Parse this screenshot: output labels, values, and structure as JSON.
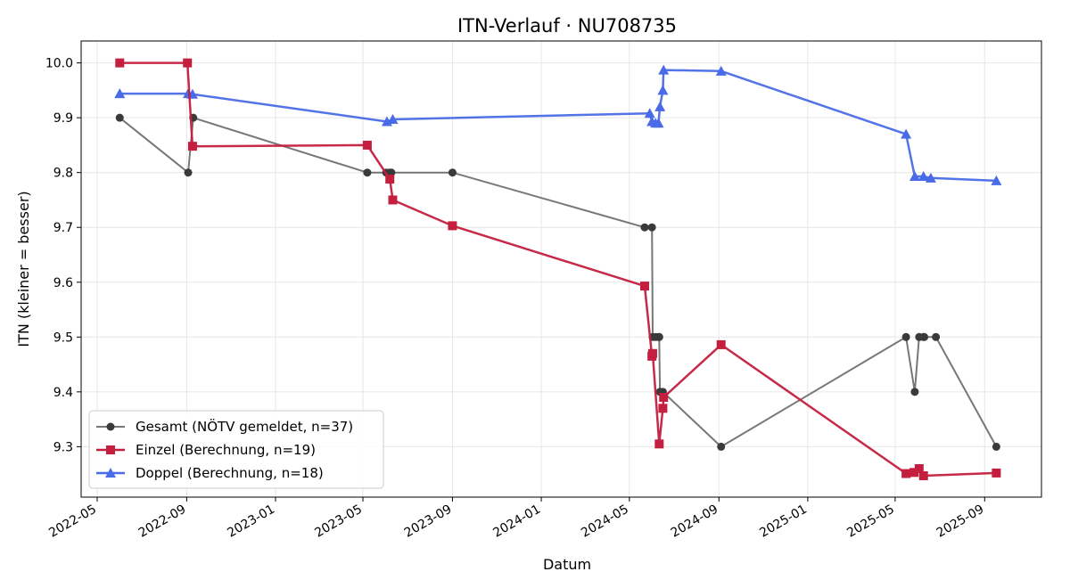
{
  "chart_data": {
    "type": "line",
    "title": "ITN-Verlauf · NU708735",
    "xlabel": "Datum",
    "ylabel": "ITN  (kleiner = besser)",
    "x_tick_labels": [
      "2022-05",
      "2022-09",
      "2023-01",
      "2023-05",
      "2023-09",
      "2024-01",
      "2024-05",
      "2024-09",
      "2025-01",
      "2025-05",
      "2025-09"
    ],
    "y_tick_labels": [
      "9.3",
      "9.4",
      "9.5",
      "9.6",
      "9.7",
      "9.8",
      "9.9",
      "10.0"
    ],
    "xlim": [
      "2022-04-09",
      "2025-11-18"
    ],
    "ylim": [
      9.208,
      10.04
    ],
    "grid": true,
    "legend_position": "bottom-left",
    "series": [
      {
        "name": "Gesamt (NÖTV gemeldet, n=37)",
        "color": "#555555",
        "marker": "circle",
        "points": [
          [
            "2022-06-01",
            9.9
          ],
          [
            "2022-09-03",
            9.8
          ],
          [
            "2022-09-10",
            9.9
          ],
          [
            "2023-05-07",
            9.8
          ],
          [
            "2023-06-02",
            9.8
          ],
          [
            "2023-06-07",
            9.8
          ],
          [
            "2023-06-09",
            9.8
          ],
          [
            "2023-09-01",
            9.8
          ],
          [
            "2024-05-22",
            9.7
          ],
          [
            "2024-06-01",
            9.7
          ],
          [
            "2024-06-02",
            9.5
          ],
          [
            "2024-06-06",
            9.5
          ],
          [
            "2024-06-10",
            9.5
          ],
          [
            "2024-06-11",
            9.5
          ],
          [
            "2024-06-12",
            9.4
          ],
          [
            "2024-06-16",
            9.4
          ],
          [
            "2024-09-04",
            9.3
          ],
          [
            "2025-05-16",
            9.5
          ],
          [
            "2025-05-28",
            9.4
          ],
          [
            "2025-06-03",
            9.5
          ],
          [
            "2025-06-09",
            9.5
          ],
          [
            "2025-06-10",
            9.5
          ],
          [
            "2025-06-26",
            9.5
          ],
          [
            "2025-09-17",
            9.3
          ]
        ]
      },
      {
        "name": "Einzel (Berechnung, n=19)",
        "color": "#c41f3e",
        "marker": "square",
        "points": [
          [
            "2022-06-01",
            10.0
          ],
          [
            "2022-09-02",
            10.0
          ],
          [
            "2022-09-09",
            9.848
          ],
          [
            "2023-05-07",
            9.85
          ],
          [
            "2023-06-07",
            9.788
          ],
          [
            "2023-06-11",
            9.75
          ],
          [
            "2023-09-01",
            9.703
          ],
          [
            "2024-05-22",
            9.593
          ],
          [
            "2024-06-01",
            9.465
          ],
          [
            "2024-06-02",
            9.47
          ],
          [
            "2024-06-11",
            9.305
          ],
          [
            "2024-06-16",
            9.37
          ],
          [
            "2024-06-17",
            9.39
          ],
          [
            "2024-09-04",
            9.486
          ],
          [
            "2025-05-16",
            9.251
          ],
          [
            "2025-05-27",
            9.253
          ],
          [
            "2025-06-03",
            9.26
          ],
          [
            "2025-06-09",
            9.247
          ],
          [
            "2025-09-17",
            9.252
          ]
        ]
      },
      {
        "name": "Doppel (Berechnung, n=18)",
        "color": "#4a6be8",
        "marker": "triangle",
        "points": [
          [
            "2022-06-01",
            9.944
          ],
          [
            "2022-09-03",
            9.944
          ],
          [
            "2022-09-09",
            9.943
          ],
          [
            "2023-06-03",
            9.893
          ],
          [
            "2023-06-11",
            9.897
          ],
          [
            "2024-05-29",
            9.908
          ],
          [
            "2024-06-01",
            9.893
          ],
          [
            "2024-06-06",
            9.89
          ],
          [
            "2024-06-10",
            9.89
          ],
          [
            "2024-06-12",
            9.92
          ],
          [
            "2024-06-16",
            9.95
          ],
          [
            "2024-06-17",
            9.987
          ],
          [
            "2024-09-04",
            9.985
          ],
          [
            "2025-05-16",
            9.87
          ],
          [
            "2025-05-28",
            9.793
          ],
          [
            "2025-06-09",
            9.793
          ],
          [
            "2025-06-19",
            9.79
          ],
          [
            "2025-09-17",
            9.785
          ]
        ]
      }
    ]
  }
}
